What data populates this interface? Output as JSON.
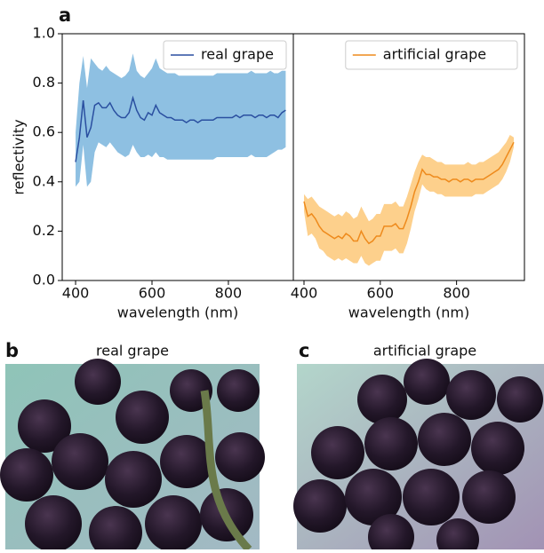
{
  "panel_labels": [
    "a",
    "b",
    "c"
  ],
  "images": [
    {
      "title": "real grape"
    },
    {
      "title": "artificial grape"
    }
  ],
  "chart_data": [
    {
      "type": "line",
      "xlabel": "wavelength (nm)",
      "ylabel": "reflectivity",
      "xlim": [
        365,
        970
      ],
      "ylim": [
        0,
        1
      ],
      "xticks": [
        400,
        600,
        800
      ],
      "yticks": [
        {
          "value": 0,
          "label": "0.0"
        },
        {
          "value": 0.2,
          "label": "0.2"
        },
        {
          "value": 0.4,
          "label": "0.4"
        },
        {
          "value": 0.6,
          "label": "0.6"
        },
        {
          "value": 0.8,
          "label": "0.8"
        },
        {
          "value": 1,
          "label": "1.0"
        }
      ],
      "legend": "upper right",
      "x": [
        400,
        410,
        420,
        430,
        440,
        450,
        460,
        470,
        480,
        490,
        500,
        510,
        520,
        530,
        540,
        550,
        560,
        570,
        580,
        590,
        600,
        610,
        620,
        630,
        640,
        650,
        660,
        670,
        680,
        690,
        700,
        710,
        720,
        730,
        740,
        750,
        760,
        770,
        780,
        790,
        800,
        810,
        820,
        830,
        840,
        850,
        860,
        870,
        880,
        890,
        900,
        910,
        920,
        930,
        940,
        950
      ],
      "series": [
        {
          "name": "real grape",
          "color": "#2a4fa0",
          "band_color": "#8ec0e2",
          "values": [
            0.48,
            0.58,
            0.73,
            0.58,
            0.62,
            0.71,
            0.72,
            0.7,
            0.7,
            0.72,
            0.69,
            0.67,
            0.66,
            0.66,
            0.68,
            0.74,
            0.69,
            0.66,
            0.65,
            0.68,
            0.67,
            0.71,
            0.68,
            0.67,
            0.66,
            0.66,
            0.65,
            0.65,
            0.65,
            0.64,
            0.65,
            0.65,
            0.64,
            0.65,
            0.65,
            0.65,
            0.65,
            0.66,
            0.66,
            0.66,
            0.66,
            0.66,
            0.67,
            0.66,
            0.67,
            0.67,
            0.67,
            0.66,
            0.67,
            0.67,
            0.66,
            0.67,
            0.67,
            0.66,
            0.68,
            0.69
          ],
          "upper": [
            0.6,
            0.8,
            0.91,
            0.78,
            0.9,
            0.88,
            0.86,
            0.85,
            0.87,
            0.85,
            0.84,
            0.83,
            0.82,
            0.83,
            0.85,
            0.92,
            0.85,
            0.83,
            0.82,
            0.84,
            0.86,
            0.9,
            0.86,
            0.85,
            0.84,
            0.84,
            0.84,
            0.83,
            0.83,
            0.83,
            0.83,
            0.83,
            0.83,
            0.83,
            0.83,
            0.83,
            0.83,
            0.84,
            0.84,
            0.84,
            0.84,
            0.84,
            0.84,
            0.84,
            0.84,
            0.84,
            0.85,
            0.84,
            0.84,
            0.84,
            0.84,
            0.85,
            0.84,
            0.84,
            0.85,
            0.85
          ],
          "lower": [
            0.38,
            0.4,
            0.55,
            0.38,
            0.4,
            0.52,
            0.56,
            0.55,
            0.54,
            0.56,
            0.54,
            0.52,
            0.51,
            0.5,
            0.51,
            0.55,
            0.52,
            0.5,
            0.5,
            0.51,
            0.5,
            0.52,
            0.5,
            0.5,
            0.49,
            0.49,
            0.49,
            0.49,
            0.49,
            0.49,
            0.49,
            0.49,
            0.49,
            0.49,
            0.49,
            0.49,
            0.49,
            0.5,
            0.5,
            0.5,
            0.5,
            0.5,
            0.5,
            0.5,
            0.5,
            0.5,
            0.51,
            0.5,
            0.5,
            0.5,
            0.5,
            0.51,
            0.52,
            0.53,
            0.53,
            0.54
          ]
        }
      ]
    },
    {
      "type": "line",
      "xlabel": "wavelength (nm)",
      "xlim": [
        372,
        978
      ],
      "ylim": [
        0,
        1
      ],
      "xticks": [
        400,
        600,
        800
      ],
      "legend": "upper right",
      "x": [
        400,
        410,
        420,
        430,
        440,
        450,
        460,
        470,
        480,
        490,
        500,
        510,
        520,
        530,
        540,
        550,
        560,
        570,
        580,
        590,
        600,
        610,
        620,
        630,
        640,
        650,
        660,
        670,
        680,
        690,
        700,
        710,
        720,
        730,
        740,
        750,
        760,
        770,
        780,
        790,
        800,
        810,
        820,
        830,
        840,
        850,
        860,
        870,
        880,
        890,
        900,
        910,
        920,
        930,
        940,
        950
      ],
      "series": [
        {
          "name": "artificial grape",
          "color": "#ee8a1c",
          "band_color": "#fdd08c",
          "values": [
            0.32,
            0.26,
            0.27,
            0.25,
            0.22,
            0.2,
            0.19,
            0.18,
            0.17,
            0.18,
            0.17,
            0.19,
            0.18,
            0.16,
            0.16,
            0.2,
            0.17,
            0.15,
            0.16,
            0.18,
            0.18,
            0.22,
            0.22,
            0.22,
            0.23,
            0.21,
            0.21,
            0.25,
            0.3,
            0.36,
            0.4,
            0.45,
            0.43,
            0.43,
            0.42,
            0.42,
            0.41,
            0.41,
            0.4,
            0.41,
            0.41,
            0.4,
            0.41,
            0.41,
            0.4,
            0.41,
            0.41,
            0.41,
            0.42,
            0.43,
            0.44,
            0.45,
            0.47,
            0.5,
            0.53,
            0.56
          ],
          "upper": [
            0.35,
            0.33,
            0.34,
            0.32,
            0.3,
            0.29,
            0.28,
            0.27,
            0.26,
            0.27,
            0.26,
            0.28,
            0.27,
            0.25,
            0.26,
            0.3,
            0.27,
            0.24,
            0.25,
            0.27,
            0.27,
            0.31,
            0.31,
            0.31,
            0.32,
            0.3,
            0.3,
            0.34,
            0.39,
            0.44,
            0.48,
            0.51,
            0.5,
            0.5,
            0.49,
            0.48,
            0.48,
            0.47,
            0.47,
            0.47,
            0.47,
            0.47,
            0.47,
            0.48,
            0.47,
            0.47,
            0.48,
            0.48,
            0.49,
            0.5,
            0.51,
            0.52,
            0.54,
            0.56,
            0.59,
            0.58
          ],
          "lower": [
            0.28,
            0.18,
            0.19,
            0.17,
            0.13,
            0.12,
            0.1,
            0.09,
            0.08,
            0.09,
            0.08,
            0.09,
            0.08,
            0.07,
            0.07,
            0.1,
            0.07,
            0.06,
            0.07,
            0.08,
            0.08,
            0.12,
            0.12,
            0.12,
            0.13,
            0.11,
            0.11,
            0.15,
            0.21,
            0.28,
            0.33,
            0.39,
            0.37,
            0.36,
            0.36,
            0.35,
            0.35,
            0.34,
            0.34,
            0.34,
            0.34,
            0.34,
            0.34,
            0.34,
            0.34,
            0.35,
            0.35,
            0.35,
            0.36,
            0.37,
            0.38,
            0.39,
            0.41,
            0.44,
            0.48,
            0.54
          ]
        }
      ]
    }
  ]
}
